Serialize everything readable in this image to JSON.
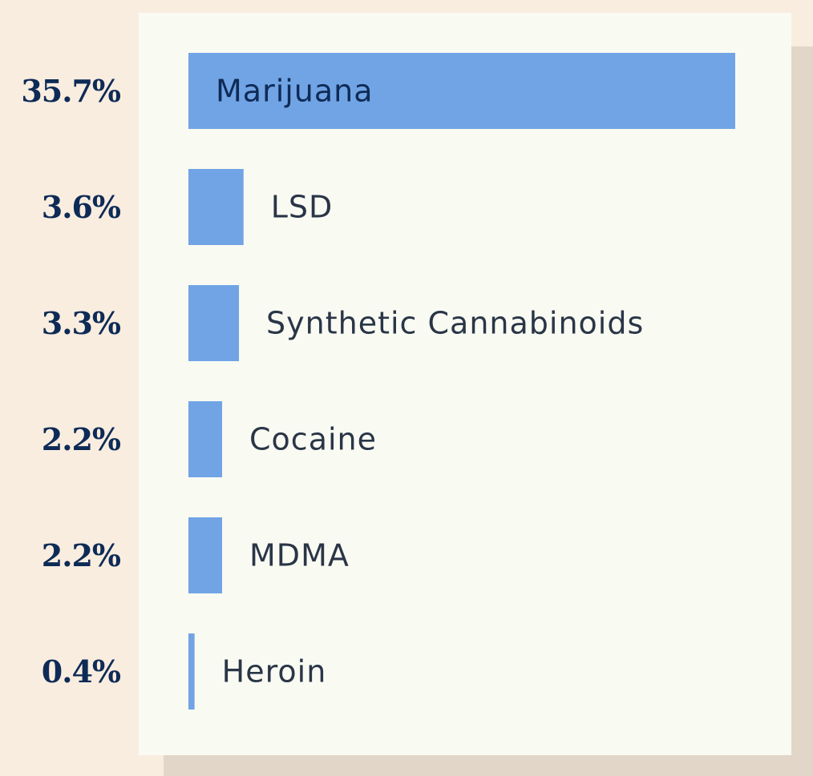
{
  "colors": {
    "background": "#f9ede0",
    "card": "#f9fbf3",
    "card_shadow": "#e1d6c8",
    "bar": "#71a4e5",
    "value_text": "#0e2b56",
    "category_text": "#2a3547"
  },
  "chart_data": {
    "type": "bar",
    "orientation": "horizontal",
    "categories": [
      "Marijuana",
      "LSD",
      "Synthetic Cannabinoids",
      "Cocaine",
      "MDMA",
      "Heroin"
    ],
    "values": [
      35.7,
      3.6,
      3.3,
      2.2,
      2.2,
      0.4
    ],
    "value_labels": [
      "35.7%",
      "3.6%",
      "3.3%",
      "2.2%",
      "2.2%",
      "0.4%"
    ],
    "unit": "%",
    "xlim": [
      0,
      35.7
    ],
    "grid": false,
    "legend": "none"
  }
}
